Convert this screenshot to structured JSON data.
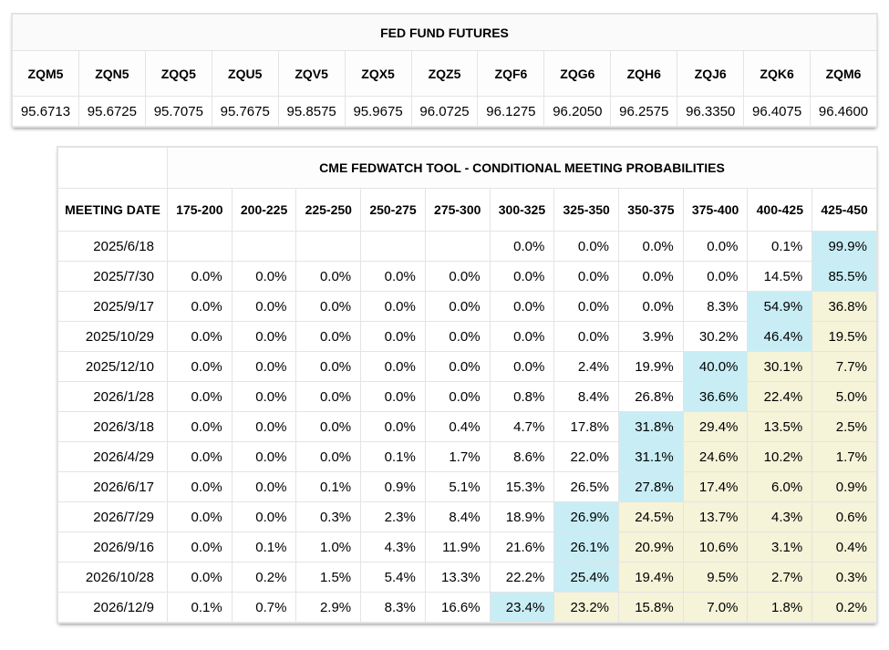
{
  "colors": {
    "max_probability_highlight": "#c8edf5",
    "tail_probability_highlight": "#f5f3d8"
  },
  "fed_fund_futures": {
    "title": "FED FUND FUTURES",
    "columns": [
      "ZQM5",
      "ZQN5",
      "ZQQ5",
      "ZQU5",
      "ZQV5",
      "ZQX5",
      "ZQZ5",
      "ZQF6",
      "ZQG6",
      "ZQH6",
      "ZQJ6",
      "ZQK6",
      "ZQM6"
    ],
    "values": [
      "95.6713",
      "95.6725",
      "95.7075",
      "95.7675",
      "95.8575",
      "95.9675",
      "96.0725",
      "96.1275",
      "96.2050",
      "96.2575",
      "96.3350",
      "96.4075",
      "96.4600"
    ]
  },
  "fedwatch": {
    "title": "CME FEDWATCH TOOL - CONDITIONAL MEETING PROBABILITIES",
    "date_header": "MEETING DATE",
    "rate_columns": [
      "175-200",
      "200-225",
      "225-250",
      "250-275",
      "275-300",
      "300-325",
      "325-350",
      "350-375",
      "375-400",
      "400-425",
      "425-450"
    ],
    "rows": [
      {
        "date": "2025/6/18",
        "cells": [
          "",
          "",
          "",
          "",
          "",
          "0.0%",
          "0.0%",
          "0.0%",
          "0.0%",
          "0.1%",
          "99.9%"
        ],
        "styles": [
          "",
          "",
          "",
          "",
          "",
          "",
          "",
          "",
          "",
          "",
          "max"
        ]
      },
      {
        "date": "2025/7/30",
        "cells": [
          "0.0%",
          "0.0%",
          "0.0%",
          "0.0%",
          "0.0%",
          "0.0%",
          "0.0%",
          "0.0%",
          "0.0%",
          "14.5%",
          "85.5%"
        ],
        "styles": [
          "",
          "",
          "",
          "",
          "",
          "",
          "",
          "",
          "",
          "",
          "max"
        ]
      },
      {
        "date": "2025/9/17",
        "cells": [
          "0.0%",
          "0.0%",
          "0.0%",
          "0.0%",
          "0.0%",
          "0.0%",
          "0.0%",
          "0.0%",
          "8.3%",
          "54.9%",
          "36.8%"
        ],
        "styles": [
          "",
          "",
          "",
          "",
          "",
          "",
          "",
          "",
          "",
          "max",
          "tail"
        ]
      },
      {
        "date": "2025/10/29",
        "cells": [
          "0.0%",
          "0.0%",
          "0.0%",
          "0.0%",
          "0.0%",
          "0.0%",
          "0.0%",
          "3.9%",
          "30.2%",
          "46.4%",
          "19.5%"
        ],
        "styles": [
          "",
          "",
          "",
          "",
          "",
          "",
          "",
          "",
          "",
          "max",
          "tail"
        ]
      },
      {
        "date": "2025/12/10",
        "cells": [
          "0.0%",
          "0.0%",
          "0.0%",
          "0.0%",
          "0.0%",
          "0.0%",
          "2.4%",
          "19.9%",
          "40.0%",
          "30.1%",
          "7.7%"
        ],
        "styles": [
          "",
          "",
          "",
          "",
          "",
          "",
          "",
          "",
          "max",
          "tail",
          "tail"
        ]
      },
      {
        "date": "2026/1/28",
        "cells": [
          "0.0%",
          "0.0%",
          "0.0%",
          "0.0%",
          "0.0%",
          "0.8%",
          "8.4%",
          "26.8%",
          "36.6%",
          "22.4%",
          "5.0%"
        ],
        "styles": [
          "",
          "",
          "",
          "",
          "",
          "",
          "",
          "",
          "max",
          "tail",
          "tail"
        ]
      },
      {
        "date": "2026/3/18",
        "cells": [
          "0.0%",
          "0.0%",
          "0.0%",
          "0.0%",
          "0.4%",
          "4.7%",
          "17.8%",
          "31.8%",
          "29.4%",
          "13.5%",
          "2.5%"
        ],
        "styles": [
          "",
          "",
          "",
          "",
          "",
          "",
          "",
          "max",
          "tail",
          "tail",
          "tail"
        ]
      },
      {
        "date": "2026/4/29",
        "cells": [
          "0.0%",
          "0.0%",
          "0.0%",
          "0.1%",
          "1.7%",
          "8.6%",
          "22.0%",
          "31.1%",
          "24.6%",
          "10.2%",
          "1.7%"
        ],
        "styles": [
          "",
          "",
          "",
          "",
          "",
          "",
          "",
          "max",
          "tail",
          "tail",
          "tail"
        ]
      },
      {
        "date": "2026/6/17",
        "cells": [
          "0.0%",
          "0.0%",
          "0.1%",
          "0.9%",
          "5.1%",
          "15.3%",
          "26.5%",
          "27.8%",
          "17.4%",
          "6.0%",
          "0.9%"
        ],
        "styles": [
          "",
          "",
          "",
          "",
          "",
          "",
          "",
          "max",
          "tail",
          "tail",
          "tail"
        ]
      },
      {
        "date": "2026/7/29",
        "cells": [
          "0.0%",
          "0.0%",
          "0.3%",
          "2.3%",
          "8.4%",
          "18.9%",
          "26.9%",
          "24.5%",
          "13.7%",
          "4.3%",
          "0.6%"
        ],
        "styles": [
          "",
          "",
          "",
          "",
          "",
          "",
          "max",
          "tail",
          "tail",
          "tail",
          "tail"
        ]
      },
      {
        "date": "2026/9/16",
        "cells": [
          "0.0%",
          "0.1%",
          "1.0%",
          "4.3%",
          "11.9%",
          "21.6%",
          "26.1%",
          "20.9%",
          "10.6%",
          "3.1%",
          "0.4%"
        ],
        "styles": [
          "",
          "",
          "",
          "",
          "",
          "",
          "max",
          "tail",
          "tail",
          "tail",
          "tail"
        ]
      },
      {
        "date": "2026/10/28",
        "cells": [
          "0.0%",
          "0.2%",
          "1.5%",
          "5.4%",
          "13.3%",
          "22.2%",
          "25.4%",
          "19.4%",
          "9.5%",
          "2.7%",
          "0.3%"
        ],
        "styles": [
          "",
          "",
          "",
          "",
          "",
          "",
          "max",
          "tail",
          "tail",
          "tail",
          "tail"
        ]
      },
      {
        "date": "2026/12/9",
        "cells": [
          "0.1%",
          "0.7%",
          "2.9%",
          "8.3%",
          "16.6%",
          "23.4%",
          "23.2%",
          "15.8%",
          "7.0%",
          "1.8%",
          "0.2%"
        ],
        "styles": [
          "",
          "",
          "",
          "",
          "",
          "max",
          "tail",
          "tail",
          "tail",
          "tail",
          "tail"
        ]
      }
    ]
  }
}
